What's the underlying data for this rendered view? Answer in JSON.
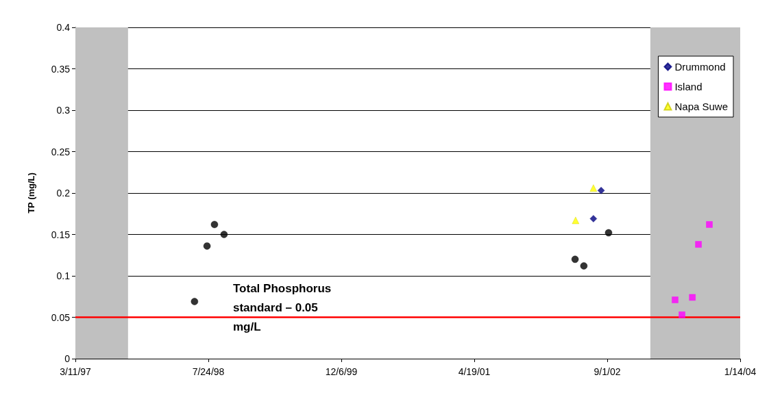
{
  "chart_data": {
    "type": "scatter",
    "ylabel": "TP (mg/L)",
    "xlim": [
      "1997-03-11",
      "2004-01-14"
    ],
    "xticks": [
      {
        "value": "1997-03-11",
        "label": "3/11/97"
      },
      {
        "value": "1998-07-24",
        "label": "7/24/98"
      },
      {
        "value": "1999-12-06",
        "label": "12/6/99"
      },
      {
        "value": "2001-04-19",
        "label": "4/19/01"
      },
      {
        "value": "2002-09-01",
        "label": "9/1/02"
      },
      {
        "value": "2004-01-14",
        "label": "1/14/04"
      }
    ],
    "ylim": [
      0,
      0.4
    ],
    "yticks": [
      0,
      0.05,
      0.1,
      0.15,
      0.2,
      0.25,
      0.3,
      0.35,
      0.4
    ],
    "grid": "y",
    "legend": "top right",
    "series": [
      {
        "color": "#000000",
        "marker": "circle",
        "x": [
          "1998-06-02",
          "1998-07-19",
          "1998-08-16",
          "1998-09-21",
          "2002-05-03",
          "2002-06-05",
          "2002-09-06"
        ],
        "values": [
          0.069,
          0.136,
          0.162,
          0.15,
          0.12,
          0.112,
          0.152
        ]
      },
      {
        "name": "Drummond",
        "color": "#000080",
        "marker": "diamond",
        "x": [
          "2002-07-11",
          "2002-08-09"
        ],
        "values": [
          0.169,
          0.203
        ]
      },
      {
        "name": "Island",
        "color": "#ff00ff",
        "marker": "square",
        "x": [
          "2003-05-14",
          "2003-06-09",
          "2003-07-18",
          "2003-08-10",
          "2003-09-20"
        ],
        "values": [
          0.071,
          0.053,
          0.074,
          0.138,
          0.162
        ]
      },
      {
        "name": "Napa Suwe",
        "color": "#ffff00",
        "marker": "triangle",
        "x": [
          "2002-05-05",
          "2002-07-11"
        ],
        "values": [
          0.167,
          0.206
        ]
      }
    ],
    "ref_lines": [
      {
        "axis": "y",
        "value": 0.05,
        "label": "Total Phosphorus standard – 0.05 mg/L",
        "color": "#ff0000"
      }
    ],
    "bands": [
      {
        "axis": "x",
        "from": "1997-03-11",
        "to": "1997-09-25",
        "color": "#c0c0c0"
      },
      {
        "axis": "x",
        "from": "2003-02-10",
        "to": "2004-01-14",
        "color": "#c0c0c0"
      }
    ]
  }
}
